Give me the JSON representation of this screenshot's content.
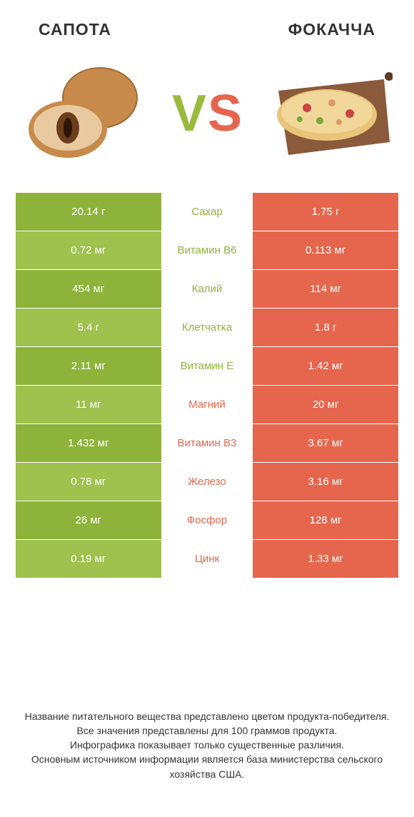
{
  "colors": {
    "green": "#8eb33b",
    "lightgreen": "#9fc14e",
    "orange": "#e6664d",
    "greenText": "#8eb33b",
    "orangeText": "#e6664d"
  },
  "header": {
    "left": "САПОТА",
    "right": "ФОКАЧЧА"
  },
  "vs": {
    "v": "V",
    "s": "S"
  },
  "rows": [
    {
      "left": "20.14 г",
      "mid": "Сахар",
      "right": "1.75 г",
      "winner": "left"
    },
    {
      "left": "0.72 мг",
      "mid": "Витамин B6",
      "right": "0.113 мг",
      "winner": "left"
    },
    {
      "left": "454 мг",
      "mid": "Калий",
      "right": "114 мг",
      "winner": "left"
    },
    {
      "left": "5.4 г",
      "mid": "Клетчатка",
      "right": "1.8 г",
      "winner": "left"
    },
    {
      "left": "2.11 мг",
      "mid": "Витамин E",
      "right": "1.42 мг",
      "winner": "left"
    },
    {
      "left": "11 мг",
      "mid": "Магний",
      "right": "20 мг",
      "winner": "right"
    },
    {
      "left": "1.432 мг",
      "mid": "Витамин B3",
      "right": "3.67 мг",
      "winner": "right"
    },
    {
      "left": "0.78 мг",
      "mid": "Железо",
      "right": "3.16 мг",
      "winner": "right"
    },
    {
      "left": "26 мг",
      "mid": "Фосфор",
      "right": "128 мг",
      "winner": "right"
    },
    {
      "left": "0.19 мг",
      "mid": "Цинк",
      "right": "1.33 мг",
      "winner": "right"
    }
  ],
  "footer": {
    "l1": "Название питательного вещества представлено цветом продукта-победителя.",
    "l2": "Все значения представлены для 100 граммов продукта.",
    "l3": "Инфографика показывает только существенные различия.",
    "l4": "Основным источником информации является база министерства сельского хозяйства США."
  }
}
